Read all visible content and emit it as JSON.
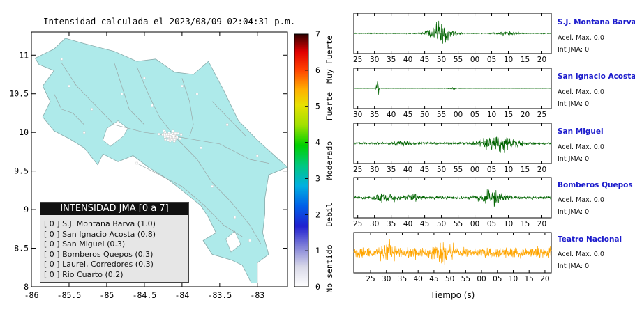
{
  "map": {
    "title": "Intensidad calculada el 2023/08/09_02:04:31_p.m.",
    "xticks": [
      "-86",
      "-85.5",
      "-85",
      "-84.5",
      "-84",
      "-83.5",
      "-83"
    ],
    "yticks": [
      "11",
      "10.5",
      "10",
      "9.5",
      "9",
      "8.5",
      "8"
    ],
    "land_color": "#aeeaea",
    "sea_color": "#ffffff"
  },
  "colorbar": {
    "ticks": [
      "0",
      "1",
      "2",
      "3",
      "4",
      "5",
      "6",
      "7"
    ],
    "labels": [
      "No sentido",
      "Debil",
      "Moderado",
      "Fuerte",
      "Muy Fuerte"
    ]
  },
  "legend": {
    "title": "INTENSIDAD JMA [0 a 7]",
    "items": [
      "[ 0 ]  S.J. Montana Barva (1.0)",
      "[ 0 ]  San Ignacio Acosta (0.8)",
      "[ 0 ]  San Miguel (0.3)",
      "[ 0 ]  Bomberos Quepos (0.3)",
      "[ 0 ]  Laurel, Corredores (0.3)",
      "[ 0 ]  Rio Cuarto (0.2)"
    ]
  },
  "stations": [
    {
      "name": "S.J. Montana Barva",
      "accel": "Acel. Max. 0.0",
      "jma": "Int JMA: 0",
      "color": "#006400",
      "ticks": [
        "25",
        "30",
        "35",
        "40",
        "45",
        "50",
        "55",
        "00",
        "05",
        "10",
        "15",
        "20"
      ]
    },
    {
      "name": "San Ignacio Acosta",
      "accel": "Acel. Max. 0.0",
      "jma": "Int JMA: 0",
      "color": "#006400",
      "ticks": [
        "30",
        "35",
        "40",
        "45",
        "50",
        "55",
        "00",
        "05",
        "10",
        "15",
        "20",
        "25"
      ]
    },
    {
      "name": "San Miguel",
      "accel": "Acel. Max. 0.0",
      "jma": "Int JMA: 0",
      "color": "#006400",
      "ticks": [
        "25",
        "30",
        "35",
        "40",
        "45",
        "50",
        "55",
        "00",
        "05",
        "10",
        "15",
        "20"
      ]
    },
    {
      "name": "Bomberos Quepos",
      "accel": "Acel. Max. 0.0",
      "jma": "Int JMA: 0",
      "color": "#006400",
      "ticks": [
        "25",
        "30",
        "35",
        "40",
        "45",
        "50",
        "55",
        "00",
        "05",
        "10",
        "15",
        "20"
      ]
    },
    {
      "name": "Teatro Nacional",
      "accel": "Acel. Max. 0.0",
      "jma": "Int JMA: 0",
      "color": "#ffa500",
      "ticks": [
        "25",
        "30",
        "35",
        "40",
        "45",
        "50",
        "55",
        "00",
        "05",
        "10",
        "15",
        "20"
      ]
    }
  ],
  "xlabel": "Tiempo (s)",
  "chart_data": [
    {
      "type": "other",
      "title": "Intensidad calculada el 2023/08/09_02:04:31_p.m.",
      "xlim": [
        -86,
        -82.6
      ],
      "ylim": [
        8,
        11.3
      ],
      "colorbar_range": [
        0,
        7
      ],
      "legend_title": "INTENSIDAD JMA [0 a 7]",
      "stations": [
        {
          "name": "S.J. Montana Barva",
          "intensity": 0,
          "value": 1.0
        },
        {
          "name": "San Ignacio Acosta",
          "intensity": 0,
          "value": 0.8
        },
        {
          "name": "San Miguel",
          "intensity": 0,
          "value": 0.3
        },
        {
          "name": "Bomberos Quepos",
          "intensity": 0,
          "value": 0.3
        },
        {
          "name": "Laurel, Corredores",
          "intensity": 0,
          "value": 0.3
        },
        {
          "name": "Rio Cuarto",
          "intensity": 0,
          "value": 0.2
        }
      ]
    },
    {
      "type": "line",
      "xlabel": "Tiempo (s)",
      "series": [
        {
          "name": "S.J. Montana Barva",
          "max_accel": 0.0,
          "jma": 0
        },
        {
          "name": "San Ignacio Acosta",
          "max_accel": 0.0,
          "jma": 0
        },
        {
          "name": "San Miguel",
          "max_accel": 0.0,
          "jma": 0
        },
        {
          "name": "Bomberos Quepos",
          "max_accel": 0.0,
          "jma": 0
        },
        {
          "name": "Teatro Nacional",
          "max_accel": 0.0,
          "jma": 0
        }
      ]
    }
  ]
}
